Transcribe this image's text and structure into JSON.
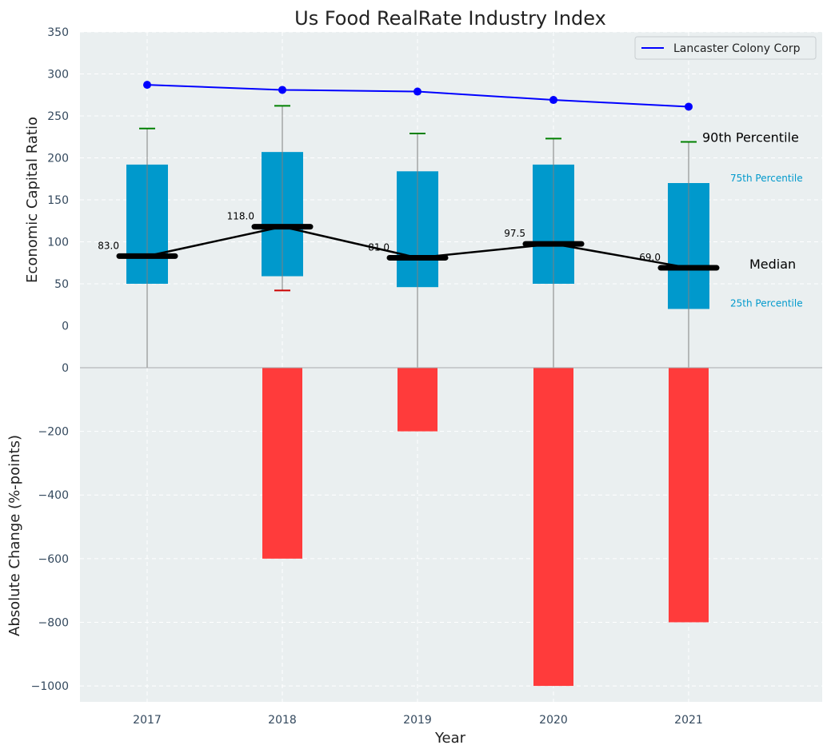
{
  "chart_data": {
    "type": "bar",
    "title": "Us Food RealRate Industry Index",
    "xlabel": "Year",
    "categories": [
      "2017",
      "2018",
      "2019",
      "2020",
      "2021"
    ],
    "top": {
      "ylabel": "Economic Capital Ratio",
      "ylim": [
        -50,
        350
      ],
      "yticks": [
        0,
        50,
        100,
        150,
        200,
        250,
        300,
        350
      ],
      "boxes": [
        {
          "year": "2017",
          "p25": 50,
          "p75": 192,
          "median": 83.0,
          "median_label": "83.0",
          "whisker_high": 235,
          "whisker_low": -50,
          "low_cap": false
        },
        {
          "year": "2018",
          "p25": 59,
          "p75": 207,
          "median": 118.0,
          "median_label": "118.0",
          "whisker_high": 262,
          "whisker_low": 42,
          "low_cap": true
        },
        {
          "year": "2019",
          "p25": 46,
          "p75": 184,
          "median": 81.0,
          "median_label": "81.0",
          "whisker_high": 229,
          "whisker_low": -50,
          "low_cap": false
        },
        {
          "year": "2020",
          "p25": 50,
          "p75": 192,
          "median": 97.5,
          "median_label": "97.5",
          "whisker_high": 223,
          "whisker_low": -50,
          "low_cap": false
        },
        {
          "year": "2021",
          "p25": 20,
          "p75": 170,
          "median": 69.0,
          "median_label": "69.0",
          "whisker_high": 219,
          "whisker_low": -50,
          "low_cap": false
        }
      ],
      "series": [
        {
          "name": "Lancaster Colony Corp",
          "values": [
            287,
            281,
            279,
            269,
            261
          ],
          "color": "#0000ff"
        }
      ],
      "annotations": {
        "p90": "90th Percentile",
        "p75": "75th Percentile",
        "median": "Median",
        "p25": "25th Percentile"
      }
    },
    "bottom": {
      "ylabel": "Absolute Change (%-points)",
      "ylim": [
        -1050,
        0
      ],
      "yticks": [
        0,
        -200,
        -400,
        -600,
        -800,
        -1000
      ],
      "values": [
        0,
        -600,
        -200,
        -1000,
        -800
      ]
    },
    "grid": true,
    "legend_position": "top-right"
  },
  "colors": {
    "plot_bg": "#eaeff0",
    "box": "#0099cc",
    "change_bar": "#ff3b3b",
    "whisker_cap_high": "#008000",
    "whisker_cap_low": "#cc0000",
    "median_mark": "#000000",
    "line": "#0000ff"
  }
}
